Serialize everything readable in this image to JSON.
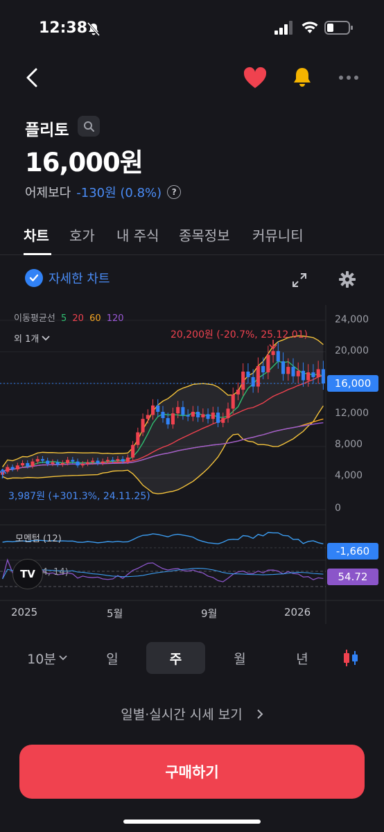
{
  "status_bar": {
    "time": "12:38"
  },
  "stock": {
    "name": "플리토",
    "price": "16,000원",
    "change_label": "어제보다",
    "change_value": "-130원 (0.8%)"
  },
  "tabs": [
    "차트",
    "호가",
    "내 주식",
    "종목정보",
    "커뮤니티"
  ],
  "chart_controls": {
    "detail_label": "자세한 차트"
  },
  "chart_data": {
    "type": "candlestick",
    "legend": {
      "title": "이동평균선",
      "periods": [
        "5",
        "20",
        "60",
        "120"
      ],
      "colors": [
        "#2fbf71",
        "#f0424f",
        "#f5a623",
        "#9b59d6"
      ],
      "others": "외 1개"
    },
    "y_ticks": [
      "24,000",
      "20,000",
      "16,000",
      "12,000",
      "8,000",
      "4,000",
      "0"
    ],
    "y_range": [
      0,
      24000
    ],
    "x_ticks": [
      "2025",
      "5월",
      "9월",
      "2026"
    ],
    "current_price_tag": "16,000",
    "high_annotation": "20,200원 (-20.7%, 25.12.01)",
    "low_annotation": "3,987원 (+301.3%, 24.11.25)",
    "weekly_closes": [
      4800,
      5400,
      5100,
      5600,
      5900,
      5500,
      6100,
      6400,
      6200,
      5800,
      6000,
      5700,
      5900,
      6300,
      6100,
      5600,
      5800,
      6000,
      6200,
      5900,
      6100,
      6300,
      6200,
      6400,
      6100,
      6600,
      8200,
      9800,
      11500,
      12000,
      13200,
      12400,
      11600,
      10800,
      12200,
      13000,
      12000,
      11800,
      12400,
      11700,
      12100,
      11500,
      12300,
      11000,
      11600,
      12800,
      14600,
      15200,
      17500,
      16800,
      15600,
      18200,
      17400,
      19600,
      20100,
      18800,
      17200,
      18100,
      16900,
      17600,
      16400,
      17400,
      16800,
      17800,
      16000
    ],
    "momentum": {
      "label": "모멘텀 (12)",
      "value": "-1,660"
    },
    "rsi": {
      "label": "RSI (14, 14)",
      "value": "54.72"
    }
  },
  "periods": [
    "10분",
    "일",
    "주",
    "월",
    "년"
  ],
  "active_period": "주",
  "daily_link": "일별·실시간 시세 보기",
  "buy_button": "구매하기",
  "colors": {
    "up": "#f0424f",
    "down": "#3182f6",
    "background": "#17171c"
  }
}
